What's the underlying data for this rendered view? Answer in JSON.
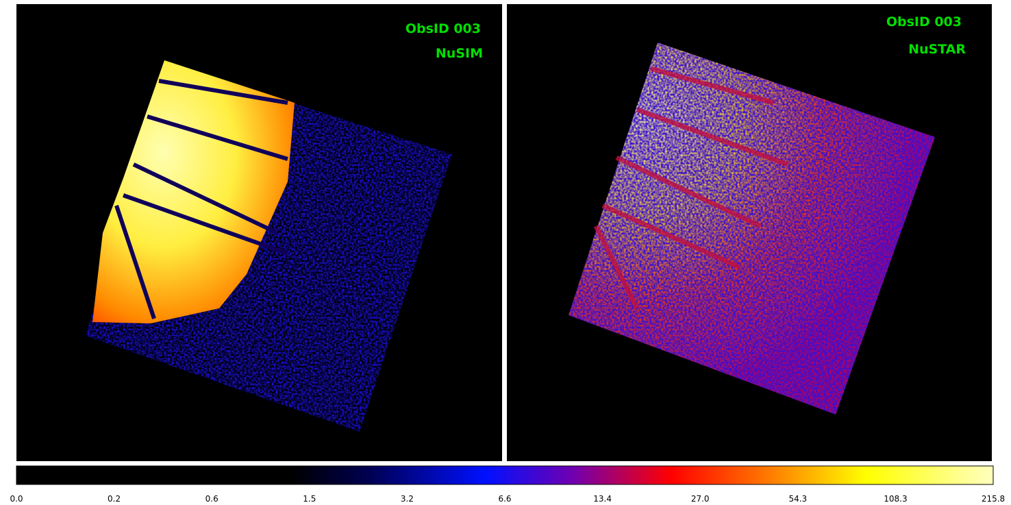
{
  "panels": [
    {
      "obsid": "ObsID 003",
      "instrument": "NuSIM"
    },
    {
      "obsid": "ObsID 003",
      "instrument": "NuSTAR"
    }
  ],
  "colorbar": {
    "ticks": [
      "0.0",
      "0.2",
      "0.6",
      "1.5",
      "3.2",
      "6.6",
      "13.4",
      "27.0",
      "54.3",
      "108.3",
      "215.8"
    ]
  }
}
